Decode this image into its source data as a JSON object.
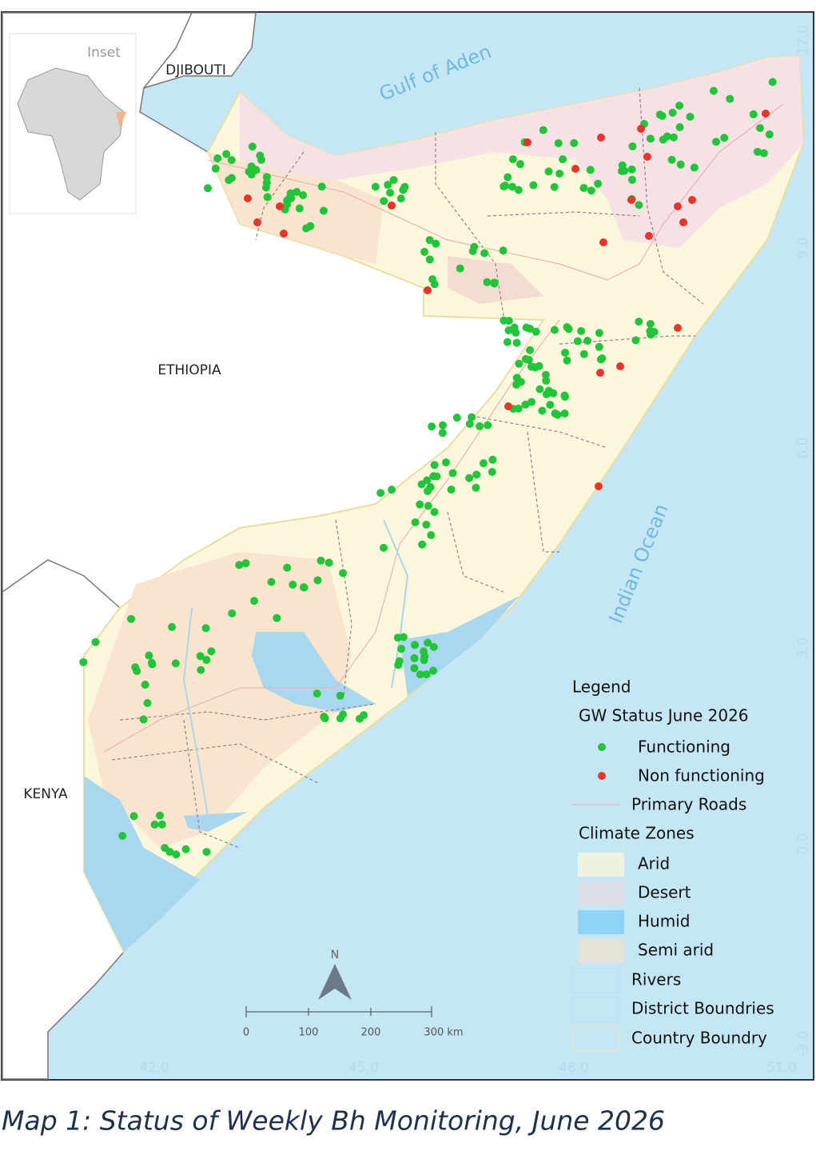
{
  "map": {
    "inset_label": "Inset",
    "countries": [
      "DJIBOUTI",
      "ETHIOPIA",
      "KENYA"
    ],
    "water": [
      "Gulf of Aden",
      "Indian Ocean"
    ],
    "latitudes": [
      "12.0",
      "9.0",
      "6.0",
      "3.0",
      "0.0",
      "-3.0"
    ],
    "longitudes": [
      "42.0",
      "45.0",
      "48.0",
      "51.0"
    ],
    "north": "N",
    "scale": [
      "0",
      "100",
      "200",
      "300 km"
    ]
  },
  "legend": {
    "title": "Legend",
    "gw_heading": "GW Status June 2026",
    "gw_items": [
      "Functioning",
      "Non functioning"
    ],
    "roads": "Primary Roads",
    "climate_heading": "Climate Zones",
    "climate_items": [
      "Arid",
      "Desert",
      "Humid",
      "Semi arid"
    ],
    "other_items": [
      "Rivers",
      "District Boundries",
      "Country Boundry"
    ]
  },
  "caption": "Map 1: Status of Weekly Bh Monitoring, June 2026"
}
